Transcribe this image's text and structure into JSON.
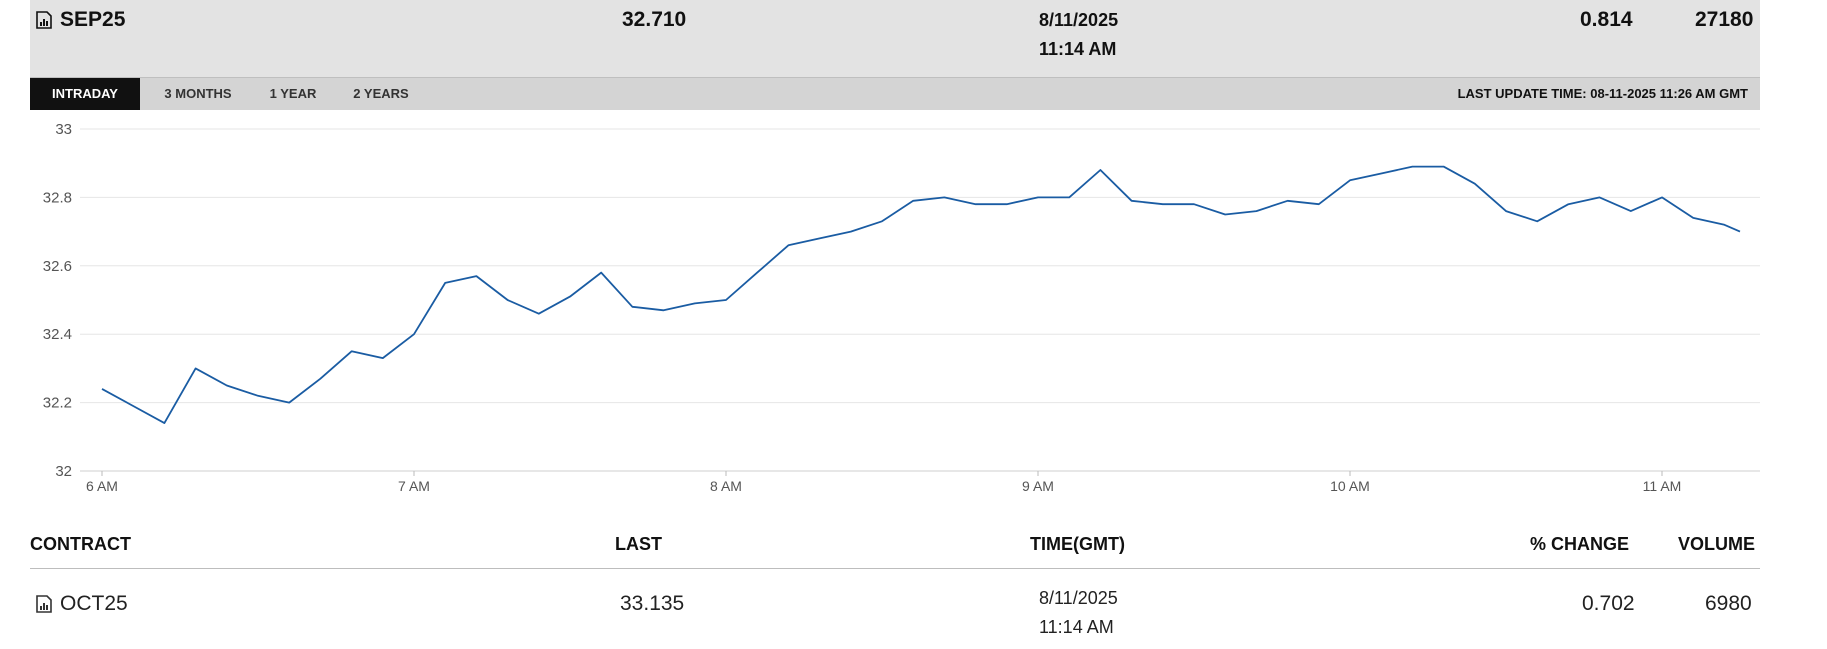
{
  "summary": {
    "contract": "SEP25",
    "last": "32.710",
    "date": "8/11/2025",
    "time": "11:14 AM",
    "change": "0.814",
    "volume": "27180",
    "icon": "chart-icon"
  },
  "tabs": [
    "INTRADAY",
    "3 MONTHS",
    "1 YEAR",
    "2 YEARS"
  ],
  "active_tab": "INTRADAY",
  "last_update": "LAST UPDATE TIME: 08-11-2025 11:26 AM GMT",
  "chart_data": {
    "type": "line",
    "ylim": [
      32,
      33
    ],
    "yticks": [
      "33",
      "32.8",
      "32.6",
      "32.4",
      "32.2",
      "32"
    ],
    "xticks": [
      "6 AM",
      "7 AM",
      "8 AM",
      "9 AM",
      "10 AM",
      "11 AM"
    ],
    "xlim": [
      0,
      5.333
    ],
    "line_color": "#1a5ca3",
    "grid": true,
    "series": [
      {
        "x": [
          0,
          0.1,
          0.2,
          0.3,
          0.4,
          0.5,
          0.6,
          0.7,
          0.8,
          0.9,
          1.0,
          1.1,
          1.2,
          1.3,
          1.4,
          1.5,
          1.6,
          1.7,
          1.8,
          1.9,
          2.0,
          2.1,
          2.2,
          2.3,
          2.4,
          2.5,
          2.6,
          2.7,
          2.8,
          2.9,
          3.0,
          3.1,
          3.2,
          3.3,
          3.4,
          3.5,
          3.6,
          3.7,
          3.8,
          3.9,
          4.0,
          4.1,
          4.2,
          4.3,
          4.4,
          4.5,
          4.6,
          4.7,
          4.8,
          4.9,
          5.0,
          5.1,
          5.2,
          5.25
        ],
        "y": [
          32.24,
          32.19,
          32.14,
          32.3,
          32.25,
          32.22,
          32.2,
          32.27,
          32.35,
          32.33,
          32.4,
          32.55,
          32.57,
          32.5,
          32.46,
          32.51,
          32.58,
          32.48,
          32.47,
          32.49,
          32.5,
          32.58,
          32.66,
          32.68,
          32.7,
          32.73,
          32.79,
          32.8,
          32.78,
          32.78,
          32.8,
          32.8,
          32.88,
          32.79,
          32.78,
          32.78,
          32.75,
          32.76,
          32.79,
          32.78,
          32.85,
          32.87,
          32.89,
          32.89,
          32.84,
          32.76,
          32.73,
          32.78,
          32.8,
          32.76,
          32.8,
          32.74,
          32.72,
          32.7
        ]
      }
    ]
  },
  "table": {
    "headers": [
      "CONTRACT",
      "LAST",
      "TIME(GMT)",
      "% CHANGE",
      "VOLUME"
    ],
    "row": {
      "contract": "OCT25",
      "last": "33.135",
      "date": "8/11/2025",
      "time": "11:14 AM",
      "change": "0.702",
      "volume": "6980"
    }
  }
}
